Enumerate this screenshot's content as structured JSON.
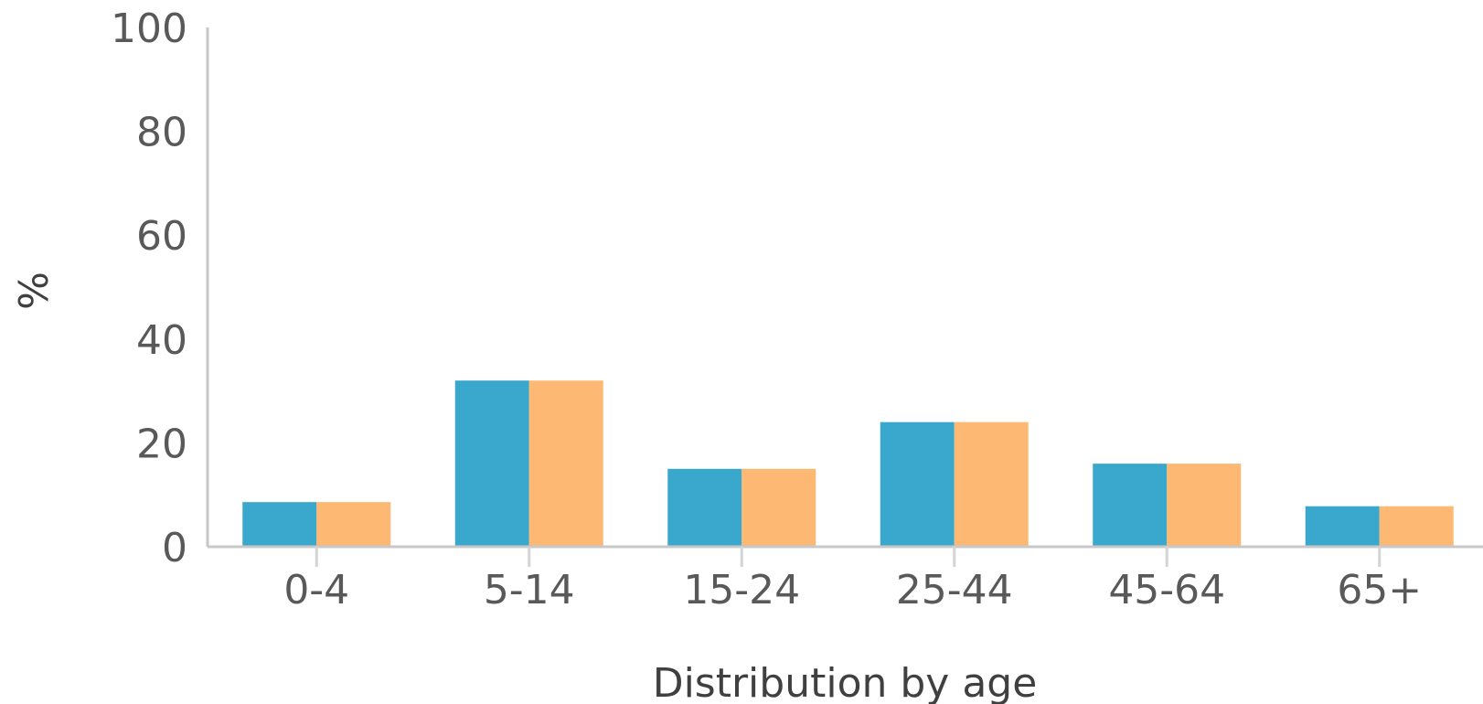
{
  "chart_data": {
    "type": "bar",
    "categories": [
      "0-4",
      "5-14",
      "15-24",
      "25-44",
      "45-64",
      "65+"
    ],
    "series": [
      {
        "color": "#3aa8cc",
        "values": [
          8.6,
          32,
          15,
          24,
          16,
          7.8
        ]
      },
      {
        "color": "#fdb873",
        "values": [
          8.6,
          32,
          15,
          24,
          16,
          7.8
        ]
      }
    ],
    "xlabel": "Distribution by age",
    "ylabel": "%",
    "ylim": [
      0,
      100
    ],
    "yticks": [
      0,
      20,
      40,
      60,
      80,
      100
    ],
    "grid": false,
    "legend": "none"
  }
}
